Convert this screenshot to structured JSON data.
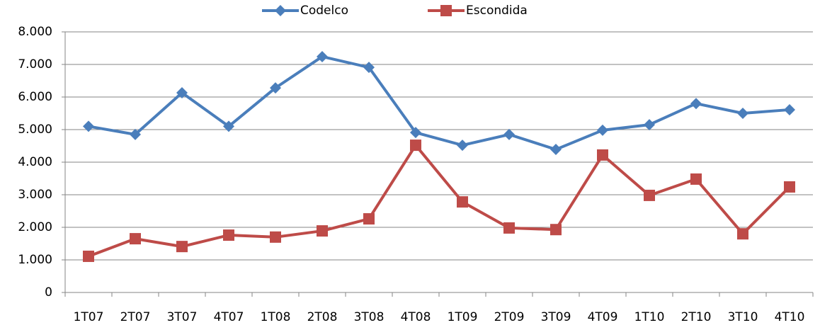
{
  "chart_data": {
    "type": "line",
    "categories": [
      "1T07",
      "2T07",
      "3T07",
      "4T07",
      "1T08",
      "2T08",
      "3T08",
      "4T08",
      "1T09",
      "2T09",
      "3T09",
      "4T09",
      "1T10",
      "2T10",
      "3T10",
      "4T10"
    ],
    "series": [
      {
        "name": "Codelco",
        "color": "#4a7ebb",
        "marker": "diamond",
        "values": [
          5100,
          4850,
          6130,
          5100,
          6280,
          7240,
          6910,
          4910,
          4520,
          4850,
          4390,
          4980,
          5150,
          5800,
          5500,
          5610
        ]
      },
      {
        "name": "Escondida",
        "color": "#be4b48",
        "marker": "square",
        "values": [
          1110,
          1650,
          1410,
          1760,
          1700,
          1890,
          2260,
          4520,
          2780,
          1980,
          1930,
          4220,
          2980,
          3480,
          1800,
          3240
        ]
      }
    ],
    "ylim": [
      0,
      8000
    ],
    "yticks": [
      0,
      {
        "value": 1000,
        "label": "1.000"
      },
      {
        "value": 2000,
        "label": "2.000"
      },
      {
        "value": 3000,
        "label": "3.000"
      },
      {
        "value": 4000,
        "label": "4.000"
      },
      {
        "value": 5000,
        "label": "5.000"
      },
      {
        "value": 6000,
        "label": "6.000"
      },
      {
        "value": 7000,
        "label": "7.000"
      },
      {
        "value": 8000,
        "label": "8.000"
      }
    ],
    "grid": true,
    "legend": "top"
  }
}
